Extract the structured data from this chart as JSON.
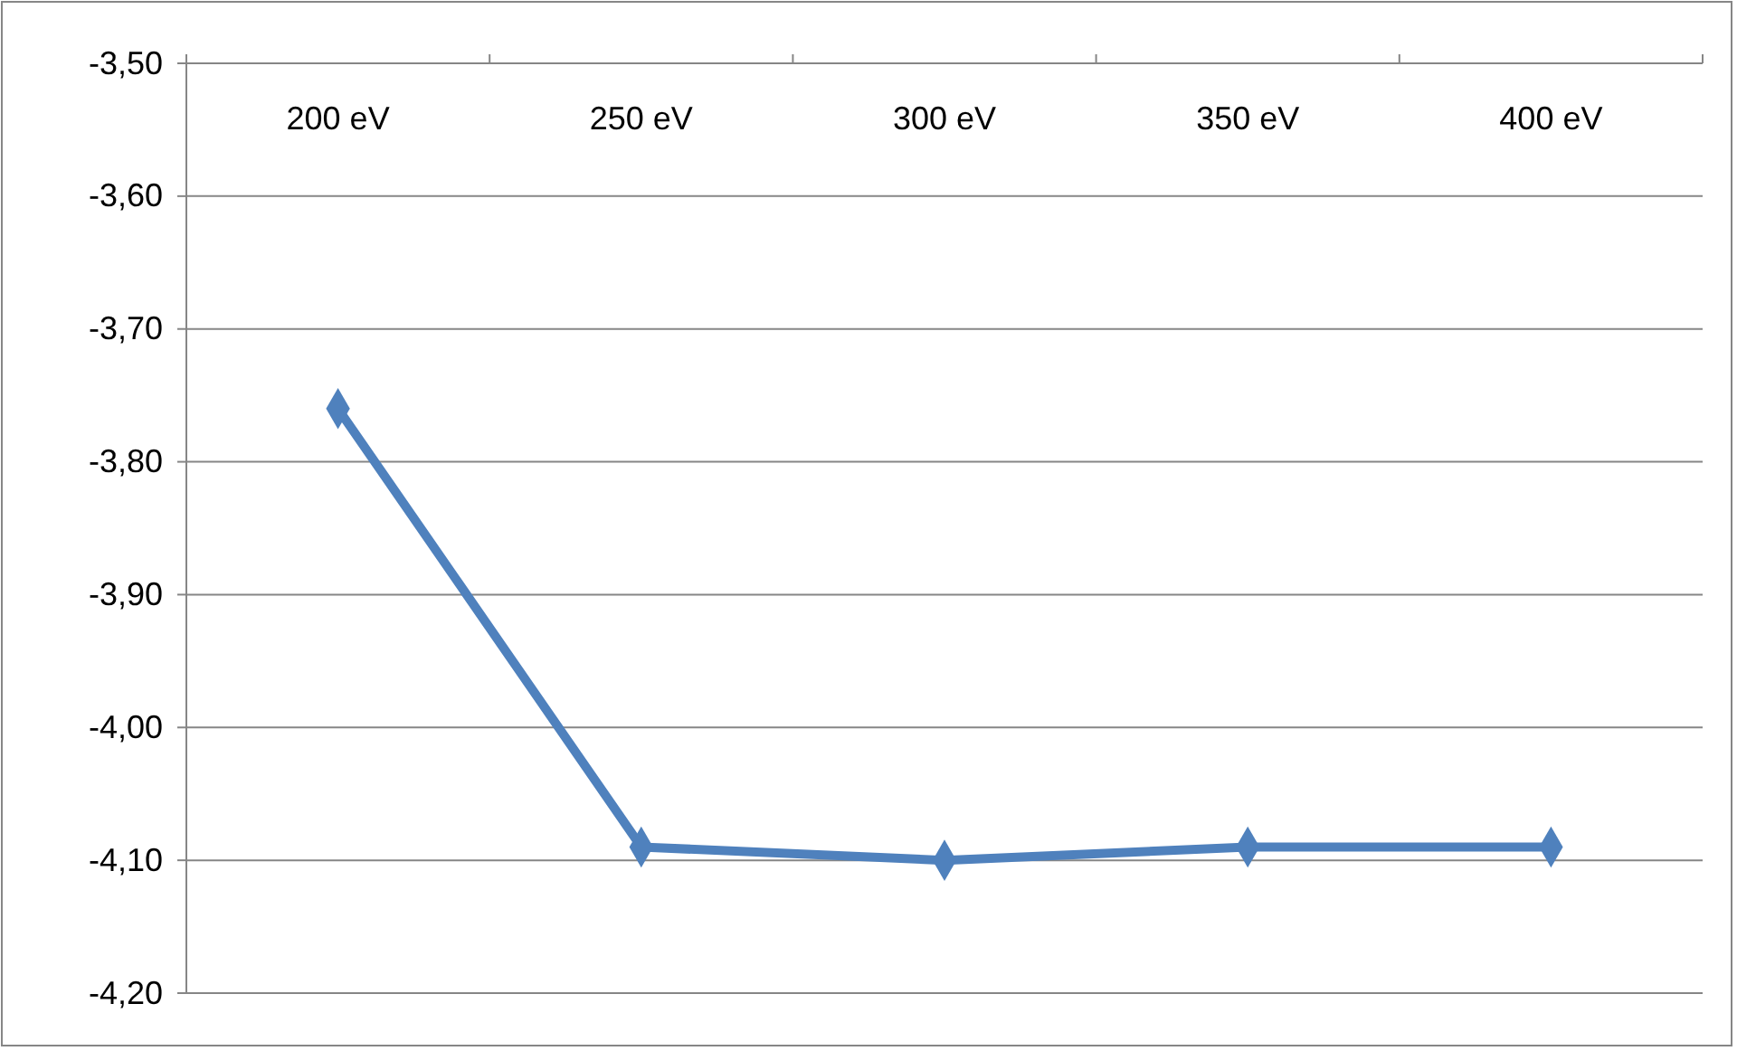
{
  "chart_data": {
    "type": "line",
    "categories": [
      "200 eV",
      "250 eV",
      "300 eV",
      "350 eV",
      "400 eV"
    ],
    "series": [
      {
        "color": "#4f81bd",
        "values": [
          -3.76,
          -4.09,
          -4.1,
          -4.09,
          -4.09
        ]
      }
    ],
    "ylim": [
      -4.2,
      -3.5
    ],
    "yticks": [
      {
        "value": -4.2,
        "label": "-4,20"
      },
      {
        "value": -4.1,
        "label": "-4,10"
      },
      {
        "value": -4.0,
        "label": "-4,00"
      },
      {
        "value": -3.9,
        "label": "-3,90"
      },
      {
        "value": -3.8,
        "label": "-3,80"
      },
      {
        "value": -3.7,
        "label": "-3,70"
      },
      {
        "value": -3.6,
        "label": "-3,60"
      },
      {
        "value": -3.5,
        "label": "-3,50"
      }
    ],
    "grid": "y",
    "marker": "diamond",
    "line_style": "solid"
  }
}
